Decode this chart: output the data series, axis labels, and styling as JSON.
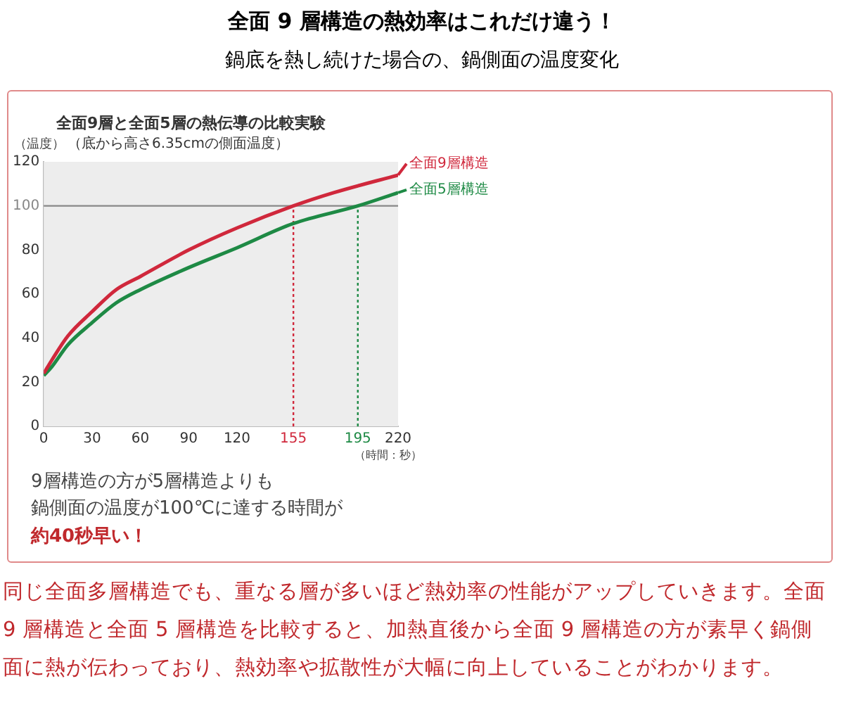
{
  "chart_data": {
    "type": "line",
    "title": "全面 9 層構造の熱効率はこれだけ違う！",
    "subtitle": "鍋底を熱し続けた場合の、鍋側面の温度変化",
    "ylabel": "（温度）",
    "xlabel": "（時間：秒）",
    "annotations": [
      "全面9層と全面5層の熱伝導の比較実験",
      "（底から高さ6.35cmの側面温度）",
      "9層構造の方が5層構造よりも",
      "鍋側面の温度が100℃に達する時間が",
      "約40秒早い！",
      "同じ全面多層構造でも、重なる層が多いほど熱効率の性能がアップしていきます。全面 9 層構造と全面 5 層構造を比較すると、加熱直後から全面 9 層構造の方が素早く鍋側面に熱が伝わっており、熱効率や拡散性が大幅に向上していることがわかります。"
    ],
    "series": [
      {
        "name": "全面9層構造",
        "color": "#d0283c",
        "x": [
          0,
          5,
          15,
          30,
          45,
          60,
          90,
          120,
          155,
          180,
          220
        ],
        "values": [
          24,
          30,
          41,
          52,
          62,
          68,
          80,
          90,
          100,
          106,
          114
        ]
      },
      {
        "name": "全面5層構造",
        "color": "#1e8a45",
        "x": [
          0,
          5,
          15,
          30,
          45,
          60,
          90,
          120,
          155,
          195,
          220
        ],
        "values": [
          23,
          27,
          37,
          47,
          56,
          62,
          72,
          81,
          92,
          100,
          106
        ]
      }
    ],
    "xlim": [
      0,
      220
    ],
    "xticks": [
      0,
      30,
      60,
      90,
      120,
      155,
      195,
      220
    ],
    "ylim": [
      0,
      120
    ],
    "yticks": [
      0,
      20,
      40,
      60,
      80,
      100,
      120
    ],
    "ref_lines": [
      {
        "axis": "y",
        "value": 100,
        "color": "#888888",
        "line_style": "solid"
      },
      {
        "axis": "x",
        "value": 155,
        "color": "#d0283c",
        "line_style": "dotted"
      },
      {
        "axis": "x",
        "value": 195,
        "color": "#1e8a45",
        "line_style": "dotted"
      }
    ],
    "marker": "none",
    "line_style": "solid",
    "grid": false,
    "legend": "right"
  }
}
